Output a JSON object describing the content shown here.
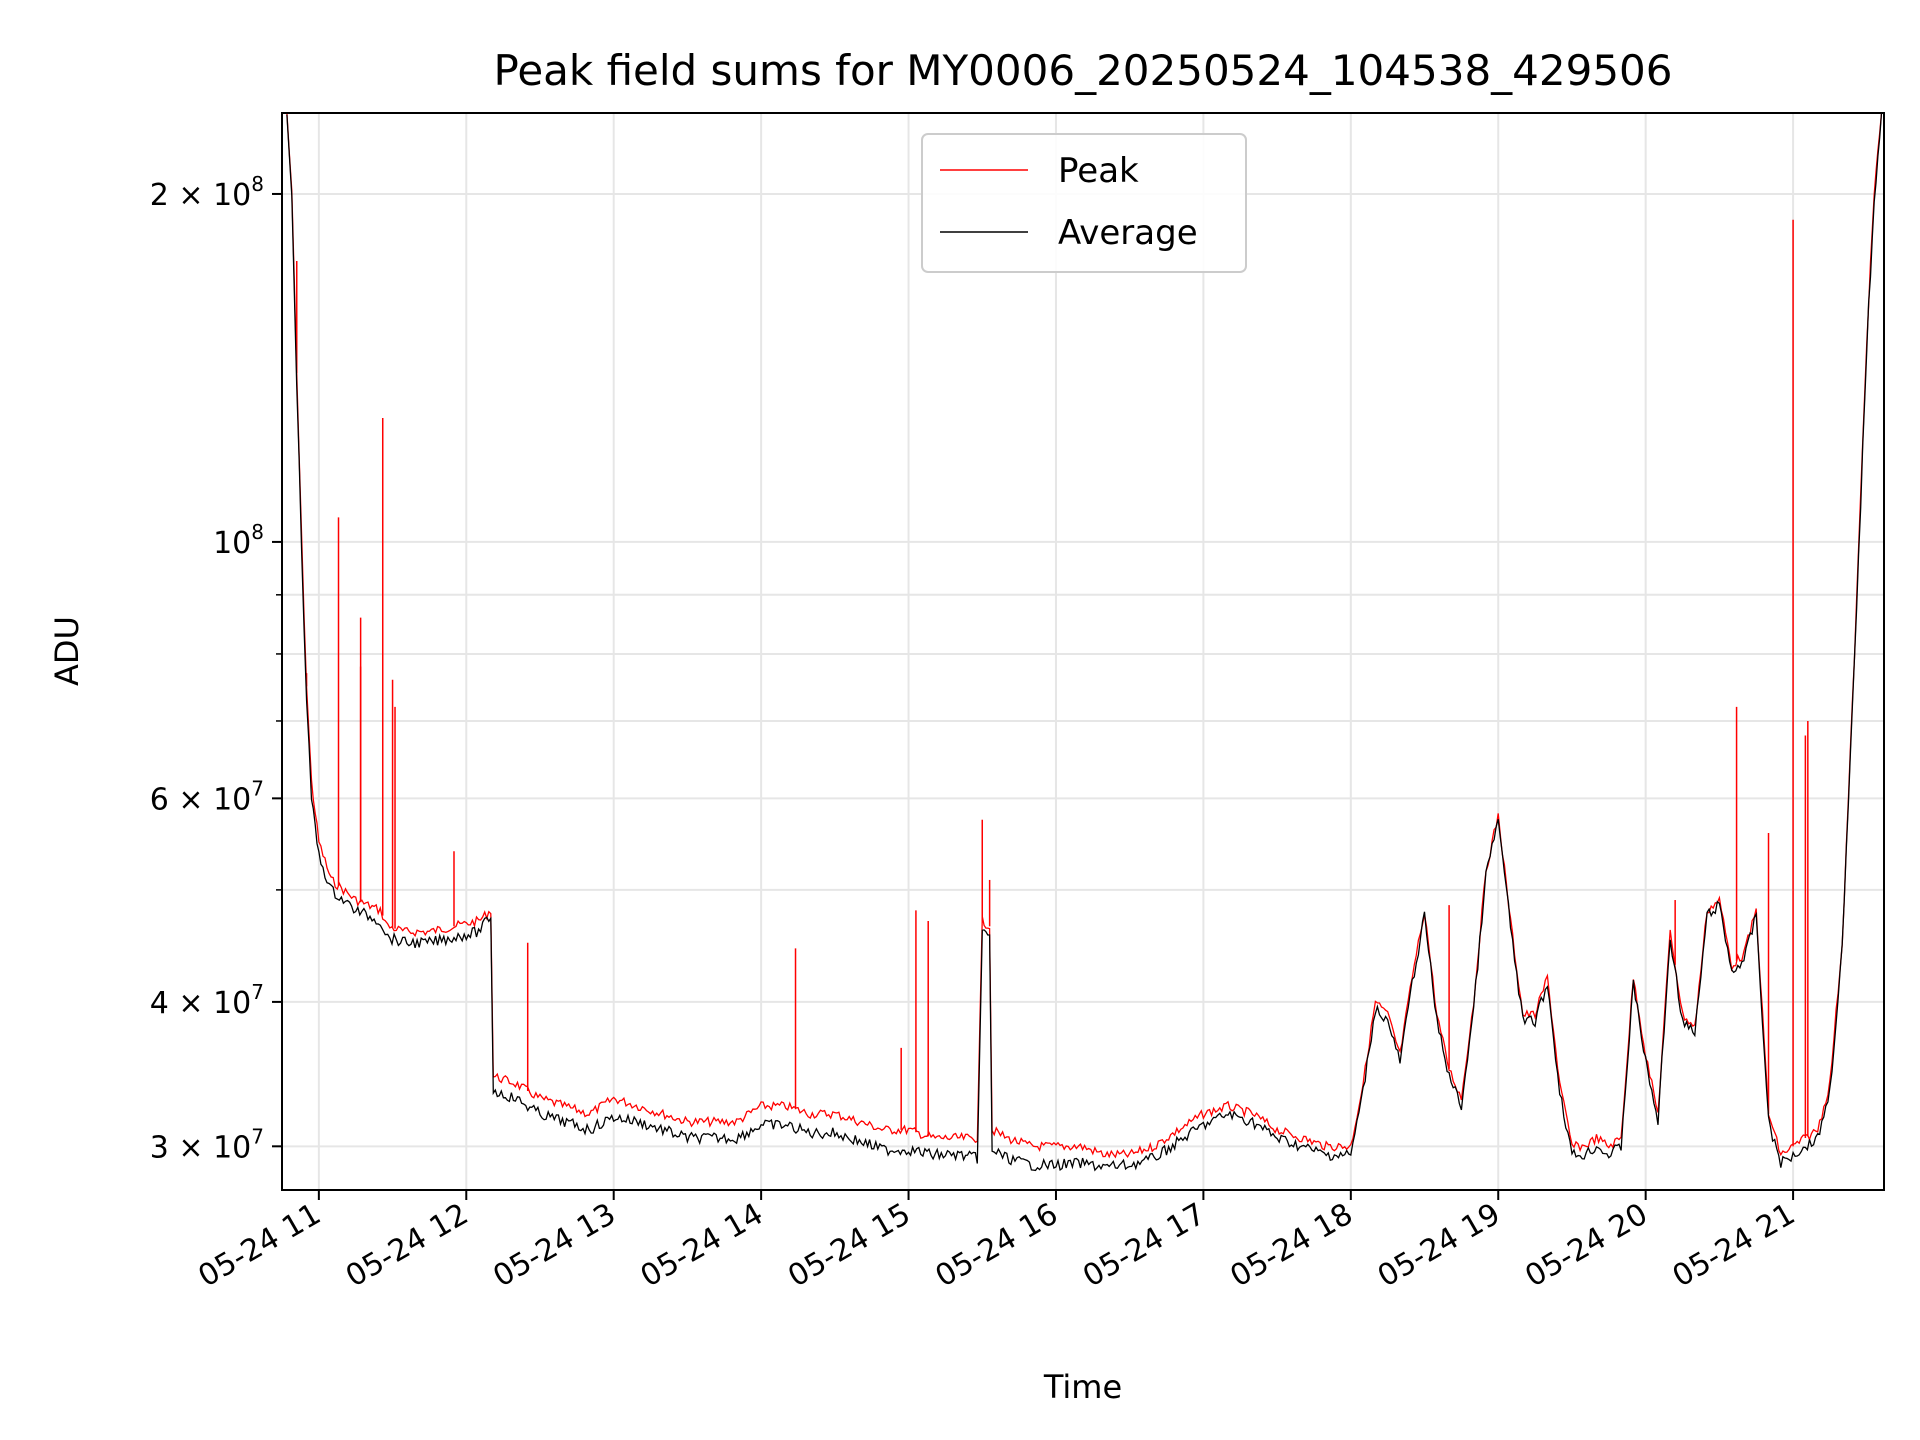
{
  "chart_data": {
    "type": "line",
    "title": "Peak field sums for MY0006_20250524_104538_429506",
    "xlabel": "Time",
    "ylabel": "ADU",
    "y_scale": "log",
    "ylim": [
      27500000,
      235000000
    ],
    "xlim": [
      "2025-05-24 10:45",
      "2025-05-24 21:37"
    ],
    "x_ticks": [
      "05-24 11",
      "05-24 12",
      "05-24 13",
      "05-24 14",
      "05-24 15",
      "05-24 16",
      "05-24 17",
      "05-24 18",
      "05-24 19",
      "05-24 20",
      "05-24 21"
    ],
    "y_ticks_major": [
      {
        "value": 30000000,
        "mantissa": "3",
        "exponent": "7"
      },
      {
        "value": 40000000,
        "mantissa": "4",
        "exponent": "7"
      },
      {
        "value": 60000000,
        "mantissa": "6",
        "exponent": "7"
      },
      {
        "value": 100000000,
        "mantissa": "",
        "exponent": "8"
      },
      {
        "value": 200000000,
        "mantissa": "2",
        "exponent": "8"
      }
    ],
    "y_ticks_minor": [
      50000000,
      70000000,
      80000000,
      90000000
    ],
    "grid": true,
    "legend_position": "top-center",
    "series": [
      {
        "name": "Peak",
        "color": "#ff0000",
        "x": [
          "2025-05-24 10:47",
          "2025-05-24 10:49",
          "2025-05-24 10:51",
          "2025-05-24 10:53",
          "2025-05-24 10:55",
          "2025-05-24 10:57",
          "2025-05-24 11:00",
          "2025-05-24 11:05",
          "2025-05-24 11:10",
          "2025-05-24 11:15",
          "2025-05-24 11:20",
          "2025-05-24 11:25",
          "2025-05-24 11:27",
          "2025-05-24 11:28",
          "2025-05-24 11:35",
          "2025-05-24 11:45",
          "2025-05-24 11:55",
          "2025-05-24 12:05",
          "2025-05-24 12:10",
          "2025-05-24 12:11",
          "2025-05-24 12:20",
          "2025-05-24 12:30",
          "2025-05-24 12:40",
          "2025-05-24 12:50",
          "2025-05-24 13:00",
          "2025-05-24 13:10",
          "2025-05-24 13:20",
          "2025-05-24 13:30",
          "2025-05-24 13:40",
          "2025-05-24 13:50",
          "2025-05-24 14:00",
          "2025-05-24 14:10",
          "2025-05-24 14:20",
          "2025-05-24 14:30",
          "2025-05-24 14:40",
          "2025-05-24 14:50",
          "2025-05-24 15:00",
          "2025-05-24 15:10",
          "2025-05-24 15:20",
          "2025-05-24 15:28",
          "2025-05-24 15:30",
          "2025-05-24 15:33",
          "2025-05-24 15:34",
          "2025-05-24 15:40",
          "2025-05-24 15:50",
          "2025-05-24 16:00",
          "2025-05-24 16:10",
          "2025-05-24 16:20",
          "2025-05-24 16:30",
          "2025-05-24 16:40",
          "2025-05-24 16:50",
          "2025-05-24 17:00",
          "2025-05-24 17:10",
          "2025-05-24 17:20",
          "2025-05-24 17:30",
          "2025-05-24 17:40",
          "2025-05-24 17:50",
          "2025-05-24 18:00",
          "2025-05-24 18:05",
          "2025-05-24 18:10",
          "2025-05-24 18:15",
          "2025-05-24 18:20",
          "2025-05-24 18:25",
          "2025-05-24 18:30",
          "2025-05-24 18:35",
          "2025-05-24 18:40",
          "2025-05-24 18:45",
          "2025-05-24 18:50",
          "2025-05-24 18:55",
          "2025-05-24 19:00",
          "2025-05-24 19:05",
          "2025-05-24 19:10",
          "2025-05-24 19:15",
          "2025-05-24 19:20",
          "2025-05-24 19:25",
          "2025-05-24 19:30",
          "2025-05-24 19:35",
          "2025-05-24 19:40",
          "2025-05-24 19:45",
          "2025-05-24 19:50",
          "2025-05-24 19:55",
          "2025-05-24 20:00",
          "2025-05-24 20:05",
          "2025-05-24 20:10",
          "2025-05-24 20:15",
          "2025-05-24 20:20",
          "2025-05-24 20:25",
          "2025-05-24 20:30",
          "2025-05-24 20:35",
          "2025-05-24 20:40",
          "2025-05-24 20:45",
          "2025-05-24 20:50",
          "2025-05-24 20:55",
          "2025-05-24 21:00",
          "2025-05-24 21:05",
          "2025-05-24 21:10",
          "2025-05-24 21:15",
          "2025-05-24 21:20",
          "2025-05-24 21:25",
          "2025-05-24 21:30",
          "2025-05-24 21:33",
          "2025-05-24 21:36"
        ],
        "values": [
          235000000,
          200000000,
          140000000,
          100000000,
          75000000,
          62000000,
          55000000,
          51000000,
          50000000,
          49000000,
          48500000,
          48000000,
          47000000,
          46500000,
          46000000,
          46000000,
          46500000,
          47000000,
          48000000,
          34500000,
          34000000,
          33000000,
          32500000,
          32000000,
          33000000,
          32500000,
          32000000,
          31500000,
          31500000,
          31500000,
          32500000,
          32500000,
          32000000,
          32000000,
          31500000,
          31000000,
          31000000,
          30500000,
          30500000,
          30500000,
          47000000,
          46500000,
          31000000,
          30500000,
          30000000,
          30000000,
          30000000,
          29500000,
          29500000,
          30000000,
          31000000,
          32000000,
          32500000,
          32000000,
          31000000,
          30500000,
          30000000,
          30000000,
          34000000,
          40000000,
          39000000,
          36000000,
          42000000,
          48000000,
          39000000,
          35000000,
          33000000,
          40000000,
          52000000,
          58000000,
          47000000,
          39000000,
          39000000,
          42000000,
          34000000,
          30000000,
          30000000,
          30500000,
          30000000,
          30500000,
          42000000,
          36000000,
          32000000,
          46000000,
          39000000,
          38000000,
          48000000,
          49000000,
          43000000,
          44000000,
          48000000,
          32000000,
          29500000,
          30000000,
          30500000,
          31000000,
          34000000,
          45000000,
          80000000,
          150000000,
          200000000,
          235000000
        ]
      },
      {
        "name": "Average",
        "color": "#000000",
        "x": [
          "2025-05-24 10:47",
          "2025-05-24 10:49",
          "2025-05-24 10:51",
          "2025-05-24 10:53",
          "2025-05-24 10:55",
          "2025-05-24 10:57",
          "2025-05-24 11:00",
          "2025-05-24 11:05",
          "2025-05-24 11:10",
          "2025-05-24 11:15",
          "2025-05-24 11:20",
          "2025-05-24 11:25",
          "2025-05-24 11:27",
          "2025-05-24 11:28",
          "2025-05-24 11:35",
          "2025-05-24 11:45",
          "2025-05-24 11:55",
          "2025-05-24 12:05",
          "2025-05-24 12:10",
          "2025-05-24 12:11",
          "2025-05-24 12:20",
          "2025-05-24 12:30",
          "2025-05-24 12:40",
          "2025-05-24 12:50",
          "2025-05-24 13:00",
          "2025-05-24 13:10",
          "2025-05-24 13:20",
          "2025-05-24 13:30",
          "2025-05-24 13:40",
          "2025-05-24 13:50",
          "2025-05-24 14:00",
          "2025-05-24 14:10",
          "2025-05-24 14:20",
          "2025-05-24 14:30",
          "2025-05-24 14:40",
          "2025-05-24 14:50",
          "2025-05-24 15:00",
          "2025-05-24 15:10",
          "2025-05-24 15:20",
          "2025-05-24 15:28",
          "2025-05-24 15:30",
          "2025-05-24 15:33",
          "2025-05-24 15:34",
          "2025-05-24 15:40",
          "2025-05-24 15:50",
          "2025-05-24 16:00",
          "2025-05-24 16:10",
          "2025-05-24 16:20",
          "2025-05-24 16:30",
          "2025-05-24 16:40",
          "2025-05-24 16:50",
          "2025-05-24 17:00",
          "2025-05-24 17:10",
          "2025-05-24 17:20",
          "2025-05-24 17:30",
          "2025-05-24 17:40",
          "2025-05-24 17:50",
          "2025-05-24 18:00",
          "2025-05-24 18:05",
          "2025-05-24 18:10",
          "2025-05-24 18:15",
          "2025-05-24 18:20",
          "2025-05-24 18:25",
          "2025-05-24 18:30",
          "2025-05-24 18:35",
          "2025-05-24 18:40",
          "2025-05-24 18:45",
          "2025-05-24 18:50",
          "2025-05-24 18:55",
          "2025-05-24 19:00",
          "2025-05-24 19:05",
          "2025-05-24 19:10",
          "2025-05-24 19:15",
          "2025-05-24 19:20",
          "2025-05-24 19:25",
          "2025-05-24 19:30",
          "2025-05-24 19:35",
          "2025-05-24 19:40",
          "2025-05-24 19:45",
          "2025-05-24 19:50",
          "2025-05-24 19:55",
          "2025-05-24 20:00",
          "2025-05-24 20:05",
          "2025-05-24 20:10",
          "2025-05-24 20:15",
          "2025-05-24 20:20",
          "2025-05-24 20:25",
          "2025-05-24 20:30",
          "2025-05-24 20:35",
          "2025-05-24 20:40",
          "2025-05-24 20:45",
          "2025-05-24 20:50",
          "2025-05-24 20:55",
          "2025-05-24 21:00",
          "2025-05-24 21:05",
          "2025-05-24 21:10",
          "2025-05-24 21:15",
          "2025-05-24 21:20",
          "2025-05-24 21:25",
          "2025-05-24 21:30",
          "2025-05-24 21:33",
          "2025-05-24 21:36"
        ],
        "values": [
          235000000,
          198000000,
          138000000,
          98000000,
          73000000,
          60000000,
          53500000,
          50000000,
          49000000,
          48000000,
          47500000,
          47000000,
          46000000,
          45500000,
          45000000,
          45000000,
          45500000,
          46000000,
          47500000,
          33500000,
          33000000,
          32000000,
          31500000,
          31000000,
          31800000,
          31500000,
          31000000,
          30500000,
          30500000,
          30500000,
          31300000,
          31300000,
          30800000,
          30800000,
          30300000,
          29800000,
          29800000,
          29500000,
          29500000,
          29300000,
          46000000,
          45500000,
          29800000,
          29300000,
          28900000,
          28900000,
          29000000,
          28800000,
          28900000,
          29300000,
          30300000,
          31300000,
          32000000,
          31500000,
          30500000,
          30000000,
          29500000,
          29500000,
          33500000,
          39500000,
          38500000,
          35500000,
          41500000,
          47500000,
          38500000,
          34500000,
          32500000,
          39500000,
          51500000,
          57500000,
          46500000,
          38500000,
          38500000,
          41500000,
          33500000,
          29500000,
          29500000,
          30000000,
          29500000,
          30000000,
          41500000,
          35500000,
          31500000,
          45500000,
          38500000,
          37500000,
          47500000,
          48500000,
          42500000,
          43500000,
          47500000,
          31500000,
          29000000,
          29500000,
          30000000,
          30500000,
          33500000,
          44500000,
          79000000,
          148000000,
          198000000,
          235000000
        ]
      }
    ],
    "spikes": [
      {
        "series": "Peak",
        "x": "2025-05-24 10:51",
        "value": 175000000
      },
      {
        "series": "Peak",
        "x": "2025-05-24 10:55",
        "value": 77000000
      },
      {
        "series": "Peak",
        "x": "2025-05-24 11:08",
        "value": 105000000
      },
      {
        "series": "Peak",
        "x": "2025-05-24 11:17",
        "value": 86000000
      },
      {
        "series": "Peak",
        "x": "2025-05-24 11:17",
        "value": 78000000
      },
      {
        "series": "Peak",
        "x": "2025-05-24 11:26",
        "value": 128000000
      },
      {
        "series": "Peak",
        "x": "2025-05-24 11:30",
        "value": 76000000
      },
      {
        "series": "Peak",
        "x": "2025-05-24 11:31",
        "value": 72000000
      },
      {
        "series": "Peak",
        "x": "2025-05-24 11:55",
        "value": 54000000
      },
      {
        "series": "Peak",
        "x": "2025-05-24 12:25",
        "value": 45000000
      },
      {
        "series": "Peak",
        "x": "2025-05-24 14:14",
        "value": 44500000
      },
      {
        "series": "Peak",
        "x": "2025-05-24 14:57",
        "value": 36500000
      },
      {
        "series": "Peak",
        "x": "2025-05-24 15:03",
        "value": 48000000
      },
      {
        "series": "Peak",
        "x": "2025-05-24 15:08",
        "value": 47000000
      },
      {
        "series": "Peak",
        "x": "2025-05-24 15:30",
        "value": 57500000
      },
      {
        "series": "Peak",
        "x": "2025-05-24 15:33",
        "value": 51000000
      },
      {
        "series": "Peak",
        "x": "2025-05-24 18:40",
        "value": 48500000
      },
      {
        "series": "Peak",
        "x": "2025-05-24 20:12",
        "value": 49000000
      },
      {
        "series": "Peak",
        "x": "2025-05-24 20:37",
        "value": 72000000
      },
      {
        "series": "Peak",
        "x": "2025-05-24 20:50",
        "value": 56000000
      },
      {
        "series": "Peak",
        "x": "2025-05-24 21:00",
        "value": 190000000
      },
      {
        "series": "Peak",
        "x": "2025-05-24 21:05",
        "value": 68000000
      },
      {
        "series": "Peak",
        "x": "2025-05-24 21:06",
        "value": 70000000
      }
    ]
  }
}
